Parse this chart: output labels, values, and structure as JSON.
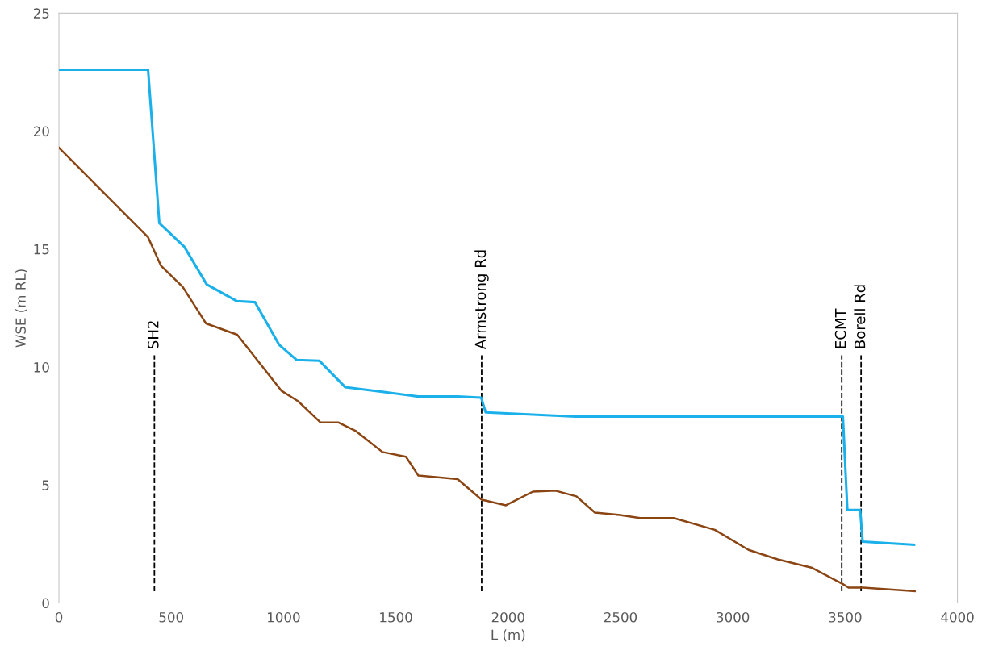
{
  "chart_data": {
    "type": "line",
    "xlabel": "L (m)",
    "ylabel": "WSE (m RL)",
    "xlim": [
      0,
      4000
    ],
    "xticks": [
      0,
      500,
      1000,
      1500,
      2000,
      2500,
      3000,
      3500,
      4000
    ],
    "ylim": [
      0,
      25
    ],
    "yticks": [
      0,
      5,
      10,
      15,
      20,
      25
    ],
    "grid": false,
    "marker": "none",
    "line_style": "solid",
    "series": [
      {
        "color": "#1ab0ea",
        "x": [
          0,
          397,
          447,
          558,
          658,
          791,
          873,
          980,
          1059,
          1159,
          1274,
          1440,
          1600,
          1775,
          1880,
          1900,
          2300,
          3490,
          3510,
          3567,
          3578,
          3807
        ],
        "values": [
          22.6,
          22.6,
          16.1,
          15.1,
          13.5,
          12.8,
          12.75,
          10.95,
          10.3,
          10.27,
          9.15,
          8.95,
          8.75,
          8.75,
          8.7,
          8.08,
          7.9,
          7.9,
          3.94,
          3.94,
          2.6,
          2.47
        ]
      },
      {
        "color": "#8b4513",
        "x": [
          0,
          397,
          454,
          551,
          655,
          794,
          990,
          1065,
          1165,
          1245,
          1320,
          1440,
          1545,
          1600,
          1775,
          1882,
          1990,
          2110,
          2211,
          2304,
          2386,
          2497,
          2587,
          2737,
          2920,
          3070,
          3200,
          3350,
          3490,
          3515,
          3580,
          3810
        ],
        "values": [
          19.3,
          15.5,
          14.3,
          13.4,
          11.85,
          11.37,
          9.0,
          8.55,
          7.65,
          7.65,
          7.3,
          6.4,
          6.2,
          5.4,
          5.25,
          4.38,
          4.14,
          4.72,
          4.76,
          4.52,
          3.83,
          3.73,
          3.6,
          3.6,
          3.1,
          2.25,
          1.85,
          1.5,
          0.8,
          0.65,
          0.65,
          0.5
        ]
      }
    ],
    "ref_lines": [
      {
        "axis": "x",
        "value": 425,
        "label": "SH2",
        "color": "#000000",
        "line_style": "dashed"
      },
      {
        "axis": "x",
        "value": 1882,
        "label": "Armstrong Rd",
        "color": "#000000",
        "line_style": "dashed"
      },
      {
        "axis": "x",
        "value": 3485,
        "label": "ECMT",
        "color": "#000000",
        "line_style": "dashed"
      },
      {
        "axis": "x",
        "value": 3571,
        "label": "Borell Rd",
        "color": "#000000",
        "line_style": "dashed"
      }
    ]
  }
}
